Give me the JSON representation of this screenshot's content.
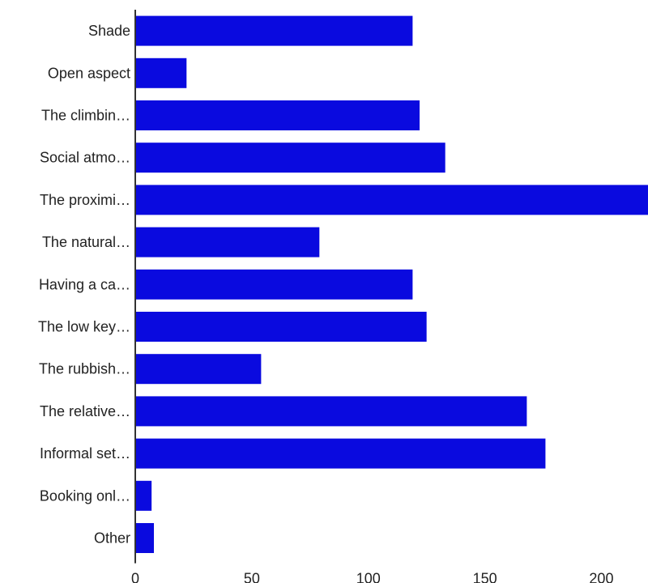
{
  "chart_data": {
    "type": "bar",
    "orientation": "horizontal",
    "categories": [
      "Shade",
      "Open aspect",
      "The climbin…",
      "Social atmo…",
      "The proximi…",
      "The natural…",
      "Having a ca…",
      "The low key…",
      "The rubbish…",
      "The relative…",
      "Informal set…",
      "Booking onl…",
      "Other"
    ],
    "values": [
      119,
      22,
      122,
      133,
      221,
      79,
      119,
      125,
      54,
      168,
      176,
      7,
      8
    ],
    "xticks": [
      0,
      50,
      100,
      150,
      200
    ],
    "xlim": [
      0,
      220
    ],
    "grid": false,
    "bar_color": "#0a0adf",
    "axis_color": "#333333",
    "text_color": "#222222"
  }
}
